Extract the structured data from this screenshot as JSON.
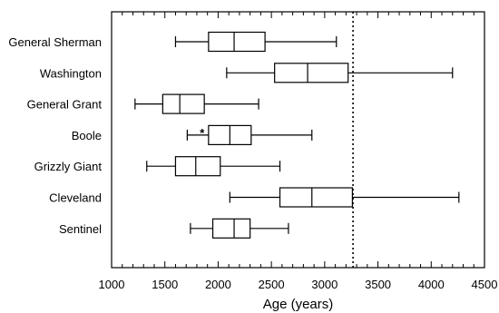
{
  "chart_data": {
    "type": "box",
    "title": "",
    "xlabel": "Age (years)",
    "ylabel": "",
    "xlim": [
      1000,
      4500
    ],
    "x_ticks": [
      1000,
      1500,
      2000,
      2500,
      3000,
      3500,
      4000,
      4500
    ],
    "x_tick_labels": [
      "1000",
      "1500",
      "2000",
      "2500",
      "3000",
      "3500",
      "4000",
      "4500"
    ],
    "minor_tick_step": 100,
    "reference_line": {
      "x": 3266,
      "style": "dotted"
    },
    "legend": "none",
    "grid": false,
    "categories": [
      {
        "name": "General Sherman",
        "min": 1600,
        "q1": 1910,
        "median": 2150,
        "q3": 2440,
        "max": 3110,
        "outliers": []
      },
      {
        "name": "Washington",
        "min": 2080,
        "q1": 2530,
        "median": 2840,
        "q3": 3220,
        "max": 4200,
        "outliers": []
      },
      {
        "name": "General Grant",
        "min": 1220,
        "q1": 1480,
        "median": 1640,
        "q3": 1870,
        "max": 2380,
        "outliers": []
      },
      {
        "name": "Boole",
        "min": 1710,
        "q1": 1910,
        "median": 2110,
        "q3": 2310,
        "max": 2880,
        "outliers": [
          {
            "x": 1850,
            "marker": "*"
          }
        ]
      },
      {
        "name": "Grizzly Giant",
        "min": 1330,
        "q1": 1600,
        "median": 1790,
        "q3": 2020,
        "max": 2580,
        "outliers": []
      },
      {
        "name": "Cleveland",
        "min": 2110,
        "q1": 2580,
        "median": 2880,
        "q3": 3260,
        "max": 4260,
        "outliers": []
      },
      {
        "name": "Sentinel",
        "min": 1740,
        "q1": 1950,
        "median": 2150,
        "q3": 2300,
        "max": 2660,
        "outliers": []
      }
    ]
  }
}
